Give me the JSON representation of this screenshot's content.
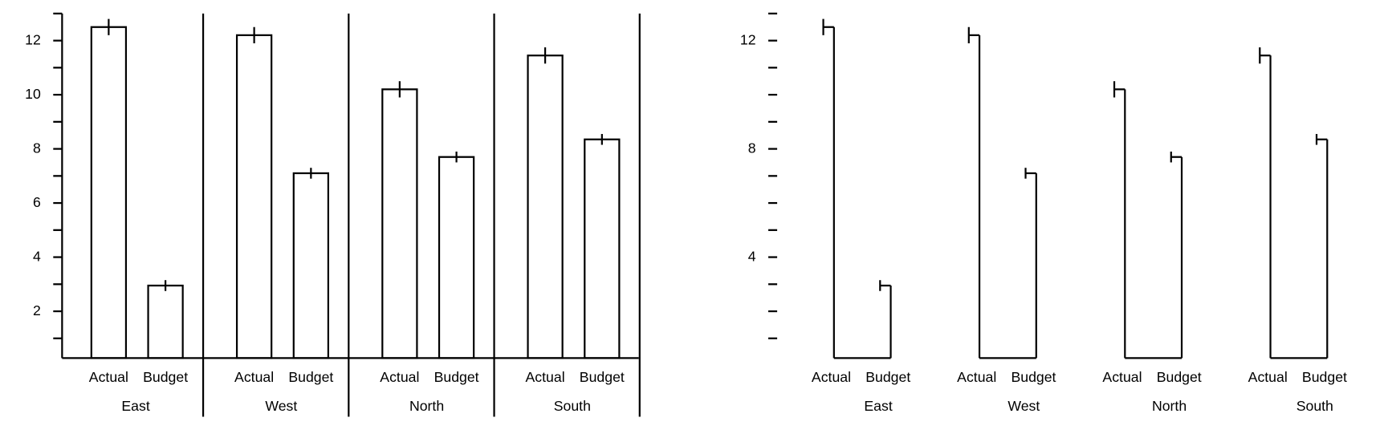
{
  "chart_data": [
    {
      "type": "bar",
      "categories": [
        "East",
        "West",
        "North",
        "South"
      ],
      "series": [
        {
          "name": "Actual",
          "values": [
            12.5,
            12.2,
            10.2,
            11.45
          ],
          "errors": [
            0.3,
            0.3,
            0.3,
            0.3
          ]
        },
        {
          "name": "Budget",
          "values": [
            2.95,
            7.1,
            7.7,
            8.35
          ],
          "errors": [
            0.2,
            0.2,
            0.2,
            0.2
          ]
        }
      ],
      "ylim": [
        0.27,
        13
      ],
      "yticks": [
        2,
        4,
        6,
        8,
        10,
        12
      ],
      "minor_yticks": [
        1,
        3,
        5,
        7,
        9,
        11,
        13
      ]
    },
    {
      "type": "step",
      "categories": [
        "East",
        "West",
        "North",
        "South"
      ],
      "series": [
        {
          "name": "Actual",
          "values": [
            12.5,
            12.2,
            10.2,
            11.45
          ],
          "errors": [
            0.3,
            0.3,
            0.3,
            0.3
          ]
        },
        {
          "name": "Budget",
          "values": [
            2.95,
            7.1,
            7.7,
            8.35
          ],
          "errors": [
            0.2,
            0.2,
            0.2,
            0.2
          ]
        }
      ],
      "ylim": [
        0.27,
        13
      ],
      "yticks": [
        4,
        8,
        12
      ],
      "minor_yticks": [
        1,
        2,
        3,
        5,
        6,
        7,
        9,
        10,
        11,
        13
      ]
    }
  ]
}
